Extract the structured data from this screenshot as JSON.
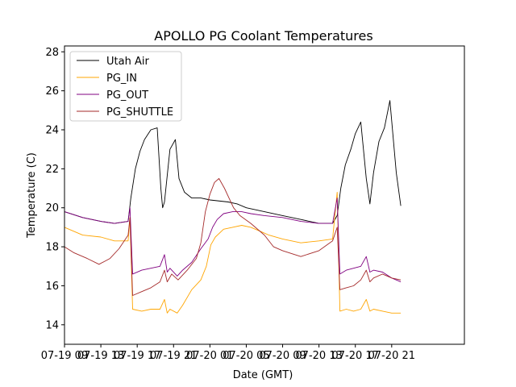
{
  "chart_data": {
    "type": "line",
    "title": "APOLLO PG Coolant Temperatures",
    "xlabel": "Date (GMT)",
    "ylabel": "Temperature (C)",
    "xlim": [
      0,
      44
    ],
    "ylim": [
      13,
      28.3
    ],
    "yticks": [
      14,
      16,
      18,
      20,
      22,
      24,
      26,
      28
    ],
    "xticks": [
      {
        "pos": 0,
        "label": "07-19 09"
      },
      {
        "pos": 4,
        "label": "07-19 13"
      },
      {
        "pos": 8,
        "label": "07-19 17"
      },
      {
        "pos": 12,
        "label": "07-19 21"
      },
      {
        "pos": 16,
        "label": "07-20 01"
      },
      {
        "pos": 20,
        "label": "07-20 05"
      },
      {
        "pos": 24,
        "label": "07-20 09"
      },
      {
        "pos": 28,
        "label": "07-20 13"
      },
      {
        "pos": 32,
        "label": "07-20 17"
      },
      {
        "pos": 36,
        "label": "07-20 21"
      }
    ],
    "legend_position": "upper-left",
    "series": [
      {
        "name": "Utah Air",
        "color": "#000000",
        "x": [
          0,
          2,
          4,
          5.5,
          7,
          7.3,
          7.8,
          8.3,
          8.8,
          9.5,
          10.2,
          10.6,
          10.8,
          11,
          11.6,
          12.2,
          12.6,
          13.2,
          14,
          15,
          16,
          18,
          19,
          20,
          22,
          24,
          26,
          28,
          29.5,
          30,
          30.4,
          30.9,
          31.5,
          32,
          32.6,
          33.2,
          33.6,
          34,
          34.6,
          35.2,
          35.8,
          36.5,
          37
        ],
        "values": [
          19.8,
          19.5,
          19.3,
          19.2,
          19.3,
          20.5,
          22.0,
          22.9,
          23.5,
          24.0,
          24.1,
          21.0,
          20.0,
          20.3,
          23.0,
          23.5,
          21.5,
          20.8,
          20.5,
          20.5,
          20.4,
          20.3,
          20.2,
          20.0,
          19.8,
          19.6,
          19.4,
          19.2,
          19.2,
          19.6,
          21.0,
          22.2,
          23.0,
          23.8,
          24.4,
          21.5,
          20.2,
          21.8,
          23.4,
          24.1,
          25.5,
          21.8,
          20.1
        ]
      },
      {
        "name": "PG_IN",
        "color": "#ffa500",
        "x": [
          0,
          2,
          4,
          5.5,
          7,
          7.2,
          7.5,
          8.5,
          9.5,
          10.5,
          11,
          11.3,
          11.6,
          12.4,
          13,
          14,
          15,
          15.6,
          16.1,
          16.6,
          17.5,
          18.5,
          19.5,
          20.5,
          21.5,
          22.5,
          24,
          26,
          28,
          29.5,
          30,
          30.3,
          31,
          31.8,
          32.6,
          33.2,
          33.6,
          34,
          35,
          36,
          37
        ],
        "values": [
          19.0,
          18.6,
          18.5,
          18.3,
          18.3,
          19.5,
          14.8,
          14.7,
          14.8,
          14.8,
          15.3,
          14.6,
          14.8,
          14.6,
          15.0,
          15.8,
          16.3,
          17.0,
          18.1,
          18.5,
          18.9,
          19.0,
          19.1,
          19.0,
          18.8,
          18.6,
          18.4,
          18.2,
          18.3,
          18.4,
          20.8,
          14.7,
          14.8,
          14.7,
          14.8,
          15.3,
          14.7,
          14.8,
          14.7,
          14.6,
          14.6
        ]
      },
      {
        "name": "PG_OUT",
        "color": "#800080",
        "x": [
          0,
          2,
          4,
          5.5,
          7,
          7.2,
          7.5,
          8.5,
          9.5,
          10.5,
          11,
          11.3,
          11.6,
          12.4,
          13,
          14,
          15,
          15.8,
          16.3,
          16.8,
          17.5,
          18.5,
          19.5,
          20.5,
          22,
          24,
          26,
          28,
          29.5,
          30,
          30.3,
          31,
          31.8,
          32.6,
          33.2,
          33.6,
          34,
          35,
          36,
          37
        ],
        "values": [
          19.8,
          19.5,
          19.3,
          19.2,
          19.3,
          20.0,
          16.6,
          16.8,
          16.9,
          17.0,
          17.6,
          16.7,
          16.9,
          16.5,
          16.8,
          17.2,
          17.9,
          18.4,
          19.0,
          19.4,
          19.7,
          19.8,
          19.8,
          19.7,
          19.6,
          19.5,
          19.3,
          19.2,
          19.2,
          20.5,
          16.6,
          16.8,
          16.9,
          17.0,
          17.5,
          16.7,
          16.8,
          16.7,
          16.4,
          16.2
        ]
      },
      {
        "name": "PG_SHUTTLE",
        "color": "#a52a2a",
        "x": [
          0,
          1,
          2.5,
          3.8,
          5,
          6,
          7,
          7.2,
          7.5,
          8.5,
          9.5,
          10.5,
          11,
          11.3,
          11.8,
          12.5,
          13.5,
          14.5,
          15,
          15.5,
          16,
          16.5,
          17,
          17.6,
          18.1,
          18.6,
          19.3,
          20.5,
          22,
          23,
          24,
          26,
          28,
          29.5,
          30,
          30.3,
          31,
          31.8,
          32.6,
          33.2,
          33.6,
          34,
          35,
          36,
          37
        ],
        "values": [
          18.0,
          17.7,
          17.4,
          17.1,
          17.4,
          17.9,
          18.6,
          19.5,
          15.5,
          15.7,
          15.9,
          16.2,
          16.8,
          16.2,
          16.6,
          16.3,
          16.8,
          17.4,
          18.2,
          19.8,
          20.7,
          21.3,
          21.5,
          21.0,
          20.5,
          20.0,
          19.6,
          19.2,
          18.6,
          18.0,
          17.8,
          17.5,
          17.8,
          18.3,
          19.0,
          15.8,
          15.9,
          16.0,
          16.3,
          16.8,
          16.2,
          16.4,
          16.6,
          16.4,
          16.3
        ]
      }
    ]
  }
}
